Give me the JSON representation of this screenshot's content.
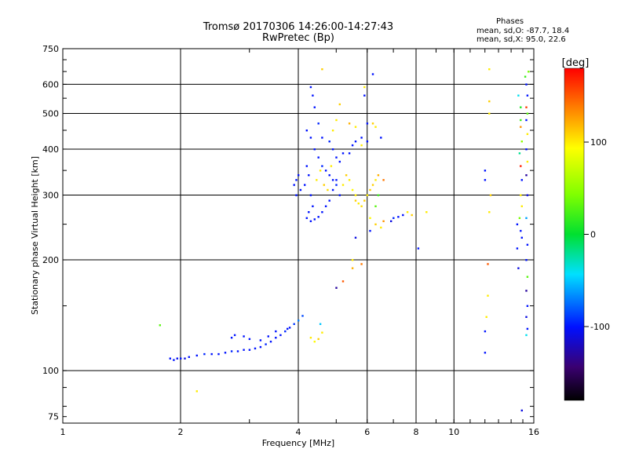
{
  "header": {
    "title": "Tromsø 20170306 14:26:00-14:27:43",
    "subtitle": "RwPretec (Bp)",
    "phases_title": "Phases",
    "phases_o": "mean, sd,O: -87.7, 18.4",
    "phases_x": "mean, sd,X: 95.0, 22.6"
  },
  "colorbar": {
    "label": "[deg]",
    "ticks": [
      {
        "label": "100",
        "value": 100
      },
      {
        "label": "0",
        "value": 0
      },
      {
        "label": "-100",
        "value": -100
      }
    ],
    "range": [
      -180,
      180
    ]
  },
  "chart_data": {
    "type": "scatter",
    "title": "Tromsø 20170306 14:26:00-14:27:43",
    "subtitle": "RwPretec (Bp)",
    "xlabel": "Frequency [MHz]",
    "ylabel": "Stationary phase Virtual Height [km]",
    "x_scale": "log",
    "y_scale": "log",
    "xlim": [
      1,
      16
    ],
    "ylim": [
      72,
      750
    ],
    "x_ticks": [
      {
        "value": 1,
        "label": "1"
      },
      {
        "value": 2,
        "label": "2"
      },
      {
        "value": 4,
        "label": "4"
      },
      {
        "value": 6,
        "label": "6"
      },
      {
        "value": 8,
        "label": "8"
      },
      {
        "value": 10,
        "label": "10"
      },
      {
        "value": 16,
        "label": "16"
      }
    ],
    "x_grid": [
      1,
      2,
      4,
      6,
      8,
      10
    ],
    "y_ticks": [
      {
        "value": 75,
        "label": "75"
      },
      {
        "value": 100,
        "label": "100"
      },
      {
        "value": 200,
        "label": "200"
      },
      {
        "value": 300,
        "label": "300"
      },
      {
        "value": 400,
        "label": "400"
      },
      {
        "value": 500,
        "label": "500"
      },
      {
        "value": 600,
        "label": "600"
      },
      {
        "value": 750,
        "label": "750"
      }
    ],
    "y_grid": [
      100,
      200,
      300,
      400,
      500,
      600
    ],
    "grid": true,
    "colorbar_label": "[deg]",
    "points": [
      [
        1.88,
        108,
        -100
      ],
      [
        1.92,
        107,
        -100
      ],
      [
        1.96,
        108,
        -105
      ],
      [
        2.0,
        108,
        -100
      ],
      [
        2.05,
        108,
        -110
      ],
      [
        2.1,
        109,
        -100
      ],
      [
        2.2,
        110,
        -100
      ],
      [
        2.3,
        111,
        -95
      ],
      [
        2.4,
        111,
        -100
      ],
      [
        2.5,
        111,
        -100
      ],
      [
        2.6,
        112,
        -100
      ],
      [
        2.7,
        113,
        -95
      ],
      [
        2.8,
        113,
        -100
      ],
      [
        2.9,
        114,
        -100
      ],
      [
        3.0,
        114,
        -100
      ],
      [
        3.1,
        115,
        -100
      ],
      [
        3.2,
        116,
        -100
      ],
      [
        3.3,
        118,
        -95
      ],
      [
        3.4,
        120,
        -100
      ],
      [
        3.5,
        123,
        -100
      ],
      [
        3.6,
        125,
        -100
      ],
      [
        3.7,
        128,
        -95
      ],
      [
        3.8,
        131,
        -100
      ],
      [
        3.9,
        134,
        -90
      ],
      [
        2.7,
        123,
        -100
      ],
      [
        2.75,
        125,
        -100
      ],
      [
        2.9,
        124,
        -100
      ],
      [
        3.0,
        122,
        -100
      ],
      [
        3.2,
        121,
        -100
      ],
      [
        3.35,
        124,
        -100
      ],
      [
        3.5,
        128,
        -100
      ],
      [
        3.75,
        130,
        -100
      ],
      [
        4.0,
        137,
        -70
      ],
      [
        4.1,
        141,
        -85
      ],
      [
        4.3,
        123,
        100
      ],
      [
        4.4,
        120,
        95
      ],
      [
        4.5,
        122,
        110
      ],
      [
        4.6,
        127,
        100
      ],
      [
        4.55,
        134,
        -50
      ],
      [
        1.77,
        133,
        30
      ],
      [
        2.2,
        88,
        100
      ],
      [
        4.3,
        590,
        -100
      ],
      [
        4.35,
        560,
        -100
      ],
      [
        4.4,
        520,
        -100
      ],
      [
        4.5,
        470,
        -95
      ],
      [
        4.6,
        430,
        -100
      ],
      [
        4.2,
        450,
        -100
      ],
      [
        4.3,
        430,
        -100
      ],
      [
        4.4,
        400,
        -100
      ],
      [
        4.5,
        380,
        -100
      ],
      [
        4.6,
        360,
        -95
      ],
      [
        4.7,
        350,
        -100
      ],
      [
        4.8,
        340,
        -100
      ],
      [
        4.9,
        330,
        -100
      ],
      [
        5.0,
        320,
        -95
      ],
      [
        5.1,
        300,
        -100
      ],
      [
        4.0,
        340,
        -100
      ],
      [
        3.95,
        330,
        -100
      ],
      [
        3.9,
        320,
        -100
      ],
      [
        3.95,
        300,
        -100
      ],
      [
        4.05,
        310,
        -100
      ],
      [
        4.2,
        360,
        -100
      ],
      [
        4.25,
        340,
        -100
      ],
      [
        4.15,
        320,
        -100
      ],
      [
        4.3,
        300,
        -100
      ],
      [
        4.35,
        280,
        -100
      ],
      [
        4.25,
        270,
        -100
      ],
      [
        4.2,
        260,
        -100
      ],
      [
        4.3,
        255,
        -100
      ],
      [
        4.4,
        258,
        -100
      ],
      [
        4.5,
        262,
        -100
      ],
      [
        4.6,
        270,
        -100
      ],
      [
        4.7,
        280,
        -100
      ],
      [
        4.8,
        290,
        -100
      ],
      [
        4.9,
        310,
        -100
      ],
      [
        5.0,
        330,
        -100
      ],
      [
        4.8,
        420,
        -95
      ],
      [
        4.9,
        400,
        -100
      ],
      [
        5.0,
        380,
        -100
      ],
      [
        5.1,
        370,
        -100
      ],
      [
        5.2,
        390,
        -100
      ],
      [
        5.4,
        390,
        -100
      ],
      [
        5.5,
        410,
        -100
      ],
      [
        5.6,
        420,
        -100
      ],
      [
        5.8,
        430,
        -100
      ],
      [
        6.0,
        420,
        -100
      ],
      [
        4.45,
        330,
        100
      ],
      [
        4.55,
        350,
        100
      ],
      [
        4.65,
        320,
        110
      ],
      [
        4.75,
        310,
        105
      ],
      [
        4.85,
        360,
        100
      ],
      [
        5.2,
        320,
        100
      ],
      [
        5.3,
        340,
        110
      ],
      [
        5.4,
        330,
        100
      ],
      [
        5.5,
        310,
        95
      ],
      [
        5.6,
        300,
        100
      ],
      [
        5.6,
        290,
        110
      ],
      [
        5.7,
        285,
        100
      ],
      [
        5.8,
        280,
        105
      ],
      [
        5.9,
        290,
        110
      ],
      [
        6.0,
        300,
        100
      ],
      [
        6.1,
        310,
        110
      ],
      [
        6.2,
        320,
        110
      ],
      [
        6.3,
        330,
        100
      ],
      [
        6.4,
        340,
        120
      ],
      [
        6.6,
        330,
        140
      ],
      [
        5.1,
        530,
        110
      ],
      [
        5.0,
        480,
        100
      ],
      [
        4.9,
        450,
        100
      ],
      [
        5.4,
        470,
        120
      ],
      [
        5.8,
        410,
        100
      ],
      [
        5.6,
        460,
        100
      ],
      [
        6.2,
        470,
        110
      ],
      [
        6.3,
        460,
        100
      ],
      [
        6.5,
        430,
        -100
      ],
      [
        6.0,
        470,
        -100
      ],
      [
        6.1,
        260,
        95
      ],
      [
        6.3,
        250,
        110
      ],
      [
        6.5,
        245,
        100
      ],
      [
        6.6,
        255,
        130
      ],
      [
        7.0,
        260,
        -95
      ],
      [
        7.2,
        262,
        -100
      ],
      [
        7.4,
        265,
        -100
      ],
      [
        7.6,
        270,
        100
      ],
      [
        6.9,
        255,
        -110
      ],
      [
        6.3,
        280,
        30
      ],
      [
        6.4,
        300,
        20
      ],
      [
        6.1,
        240,
        -100
      ],
      [
        5.6,
        230,
        -110
      ],
      [
        8.1,
        215,
        -100
      ],
      [
        7.8,
        265,
        110
      ],
      [
        8.5,
        270,
        100
      ],
      [
        6.2,
        640,
        -100
      ],
      [
        5.9,
        590,
        100
      ],
      [
        5.9,
        560,
        -100
      ],
      [
        4.6,
        660,
        110
      ],
      [
        5.5,
        190,
        120
      ],
      [
        5.8,
        195,
        140
      ],
      [
        5.2,
        175,
        150
      ],
      [
        5.0,
        168,
        -130
      ],
      [
        5.5,
        200,
        100
      ],
      [
        12.3,
        660,
        100
      ],
      [
        12.3,
        540,
        110
      ],
      [
        12.3,
        500,
        100
      ],
      [
        12.0,
        350,
        -100
      ],
      [
        12.0,
        330,
        -100
      ],
      [
        12.4,
        300,
        110
      ],
      [
        12.3,
        270,
        100
      ],
      [
        12.2,
        160,
        100
      ],
      [
        12.1,
        140,
        100
      ],
      [
        12.0,
        128,
        -100
      ],
      [
        12.0,
        112,
        -100
      ],
      [
        12.2,
        195,
        150
      ],
      [
        14.6,
        560,
        -40
      ],
      [
        14.8,
        520,
        10
      ],
      [
        14.8,
        480,
        20
      ],
      [
        14.8,
        460,
        130
      ],
      [
        14.9,
        420,
        50
      ],
      [
        14.7,
        390,
        -20
      ],
      [
        14.8,
        360,
        170
      ],
      [
        14.9,
        330,
        -100
      ],
      [
        14.8,
        300,
        100
      ],
      [
        14.9,
        280,
        100
      ],
      [
        14.7,
        260,
        40
      ],
      [
        14.8,
        240,
        -100
      ],
      [
        14.9,
        230,
        -100
      ],
      [
        15.2,
        630,
        20
      ],
      [
        15.3,
        600,
        -100
      ],
      [
        15.4,
        560,
        -100
      ],
      [
        15.3,
        520,
        160
      ],
      [
        15.4,
        500,
        30
      ],
      [
        15.3,
        480,
        -100
      ],
      [
        15.4,
        440,
        100
      ],
      [
        15.3,
        400,
        -100
      ],
      [
        15.4,
        370,
        100
      ],
      [
        15.3,
        340,
        -130
      ],
      [
        15.4,
        300,
        -110
      ],
      [
        15.3,
        260,
        -60
      ],
      [
        15.4,
        220,
        -100
      ],
      [
        15.3,
        200,
        -100
      ],
      [
        15.4,
        180,
        30
      ],
      [
        15.3,
        165,
        -130
      ],
      [
        15.4,
        150,
        -100
      ],
      [
        15.3,
        140,
        -110
      ],
      [
        15.4,
        130,
        -100
      ],
      [
        15.3,
        125,
        -40
      ],
      [
        14.6,
        190,
        -110
      ],
      [
        14.5,
        215,
        -100
      ],
      [
        14.5,
        250,
        -100
      ],
      [
        14.9,
        78,
        -110
      ],
      [
        15.5,
        650,
        40
      ]
    ]
  }
}
